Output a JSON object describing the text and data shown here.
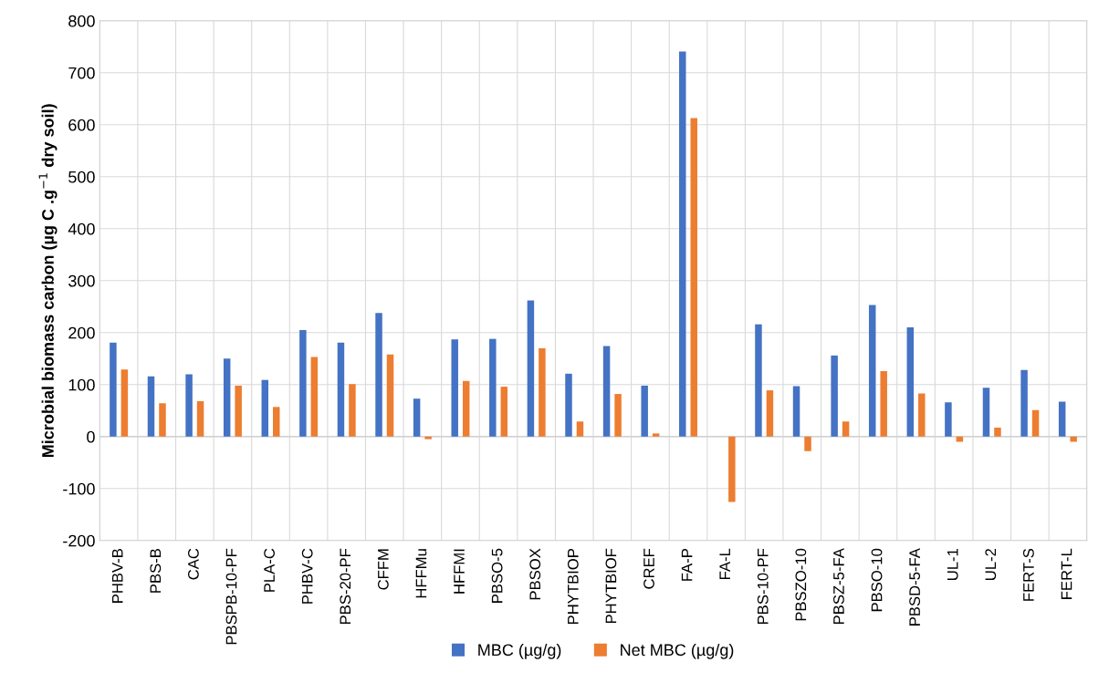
{
  "chart_data": {
    "type": "bar",
    "ylabel": "Microbial biomass carbon (µg C .g$^{−1}$ dry soil)",
    "categories": [
      "PHBV-B",
      "PBS-B",
      "CAC",
      "PBSPB-10-PF",
      "PLA-C",
      "PHBV-C",
      "PBS-20-PF",
      "CFFM",
      "HFFMu",
      "HFFMI",
      "PBSO-5",
      "PBSOX",
      "PHYTBIOP",
      "PHYTBIOF",
      "CREF",
      "FA-P",
      "FA-L",
      "PBS-10-PF",
      "PBSZO-10",
      "PBSZ-5-FA",
      "PBSO-10",
      "PBSD-5-FA",
      "UL-1",
      "UL-2",
      "FERT-S",
      "FERT-L"
    ],
    "series": [
      {
        "name": "MBC (µg/g)",
        "color": "#4472c4",
        "values": [
          181,
          116,
          120,
          150,
          109,
          205,
          181,
          238,
          73,
          187,
          188,
          262,
          121,
          174,
          98,
          741,
          null,
          216,
          97,
          156,
          253,
          210,
          66,
          94,
          128,
          67
        ]
      },
      {
        "name": "Net MBC (µg/g)",
        "color": "#ed7d31",
        "values": [
          129,
          64,
          68,
          98,
          57,
          153,
          101,
          158,
          -5,
          107,
          96,
          170,
          29,
          82,
          6,
          613,
          -126,
          89,
          -28,
          29,
          126,
          83,
          -10,
          17,
          51,
          -10
        ]
      }
    ],
    "ylim": [
      -200,
      800
    ],
    "yticks": [
      -200,
      -100,
      0,
      100,
      200,
      300,
      400,
      500,
      600,
      700,
      800
    ],
    "grid": true,
    "legend": "bottom"
  }
}
